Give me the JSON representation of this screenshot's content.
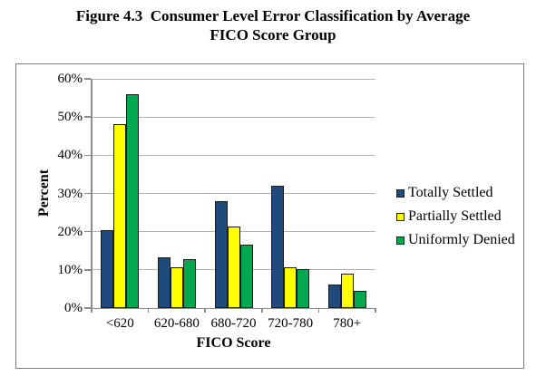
{
  "figure": {
    "title_line1": "Figure 4.3  Consumer Level Error Classification by Average",
    "title_line2": "FICO Score Group"
  },
  "chart_data": {
    "type": "bar",
    "title": "Figure 4.3 Consumer Level Error Classification by Average FICO Score Group",
    "xlabel": "FICO Score",
    "ylabel": "Percent",
    "categories": [
      "<620",
      "620-680",
      "680-720",
      "720-780",
      "780+"
    ],
    "series": [
      {
        "name": "Totally Settled",
        "color": "#1F4A7C",
        "values": [
          20.5,
          13.4,
          27.9,
          32.0,
          6.2
        ]
      },
      {
        "name": "Partially Settled",
        "color": "#FFFF00",
        "values": [
          48.2,
          10.7,
          21.4,
          10.7,
          8.9
        ]
      },
      {
        "name": "Uniformly Denied",
        "color": "#00A94F",
        "values": [
          56.0,
          12.9,
          16.5,
          10.1,
          4.6
        ]
      }
    ],
    "ylim": [
      0,
      60
    ],
    "ytick_step": 10,
    "ytick_labels": [
      "0%",
      "10%",
      "20%",
      "30%",
      "40%",
      "50%",
      "60%"
    ],
    "grid": true,
    "legend_position": "right"
  },
  "palette": {
    "gridline": "#B3B3B3",
    "axis_line": "#8C8C8C",
    "bar_border": "#1C1C1C",
    "frame_border": "#7F7F7F"
  }
}
